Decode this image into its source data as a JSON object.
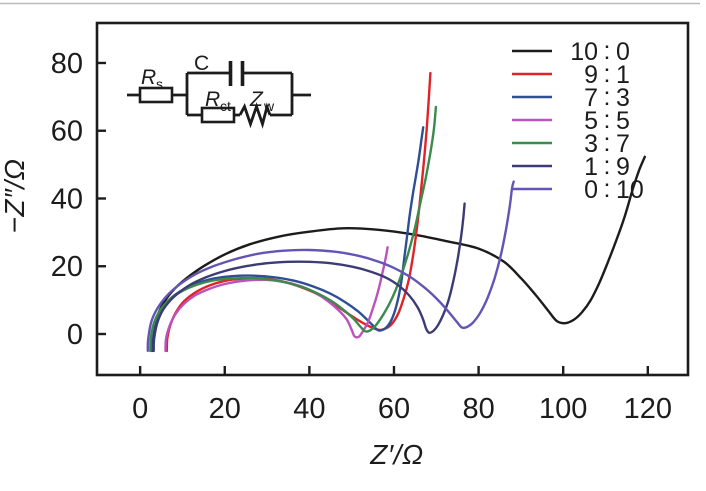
{
  "figure": {
    "background": "#ffffff",
    "frame_color": "#1c1c1c",
    "top_border_color": "#bbbbbb"
  },
  "axes": {
    "x": {
      "title": "Z′/Ω",
      "ticks": [
        0,
        20,
        40,
        60,
        80,
        100,
        120
      ],
      "range": [
        -10.2,
        129.5
      ]
    },
    "y": {
      "title": "−Z″/Ω",
      "ticks": [
        0,
        20,
        40,
        60,
        80
      ],
      "range": [
        -12.1,
        91.8
      ]
    }
  },
  "legend": {
    "position": "top-right",
    "items": [
      {
        "label": "10 : 0",
        "color": "#1c1c1c"
      },
      {
        "label": "9 : 1",
        "color": "#e02328"
      },
      {
        "label": "7 : 3",
        "color": "#2e4f93"
      },
      {
        "label": "5 : 5",
        "color": "#bb53be"
      },
      {
        "label": "3 : 7",
        "color": "#3c8a4d"
      },
      {
        "label": "1 : 9",
        "color": "#3c3c74"
      },
      {
        "label": "0 : 10",
        "color": "#6355b4"
      }
    ]
  },
  "circuit_inset": {
    "rs": {
      "main": "R",
      "sub": "s"
    },
    "c": {
      "main": "C"
    },
    "rct": {
      "main": "R",
      "sub": "ct"
    },
    "zw": {
      "main": "Z",
      "sub": "w"
    }
  },
  "chart_data": {
    "type": "line",
    "description": "Nyquist impedance plot (EIS): semicircle + Warburg tail for each mixing ratio",
    "xlabel": "Z′/Ω",
    "ylabel": "−Z″/Ω",
    "xlim": [
      -10.2,
      129.5
    ],
    "ylim": [
      -12.1,
      91.8
    ],
    "grid": false,
    "series": [
      {
        "name": "10 : 0",
        "color": "#1c1c1c",
        "points": [
          [
            2.8,
            -5
          ],
          [
            2.9,
            -1
          ],
          [
            3.6,
            3.5
          ],
          [
            5,
            8
          ],
          [
            7.5,
            12.5
          ],
          [
            11,
            16.5
          ],
          [
            15,
            20
          ],
          [
            20,
            23.5
          ],
          [
            26,
            26.5
          ],
          [
            33,
            28.8
          ],
          [
            40,
            30.2
          ],
          [
            48,
            31.2
          ],
          [
            56,
            30.8
          ],
          [
            64,
            29.5
          ],
          [
            72,
            27.5
          ],
          [
            80,
            25.2
          ],
          [
            86,
            21.3
          ],
          [
            90,
            16.5
          ],
          [
            93.5,
            11.5
          ],
          [
            96.5,
            6.8
          ],
          [
            98.5,
            3.8
          ],
          [
            100.5,
            3.2
          ],
          [
            102.5,
            4.2
          ],
          [
            104.5,
            6.5
          ],
          [
            106.5,
            10
          ],
          [
            108.5,
            15
          ],
          [
            110.5,
            21
          ],
          [
            112.5,
            27.5
          ],
          [
            114.5,
            34.5
          ],
          [
            116.5,
            43
          ],
          [
            118,
            48.5
          ],
          [
            119.3,
            52.3
          ]
        ]
      },
      {
        "name": "9 : 1",
        "color": "#e02328",
        "points": [
          [
            6.3,
            -5
          ],
          [
            6.4,
            -1.5
          ],
          [
            7.1,
            2.5
          ],
          [
            8.5,
            6.5
          ],
          [
            10.5,
            9.8
          ],
          [
            13.5,
            12.6
          ],
          [
            17,
            14.6
          ],
          [
            21,
            15.9
          ],
          [
            25,
            16.4
          ],
          [
            29,
            16.4
          ],
          [
            33,
            15.7
          ],
          [
            37,
            14.3
          ],
          [
            41,
            12.3
          ],
          [
            44.5,
            9.9
          ],
          [
            47.5,
            7.4
          ],
          [
            50.5,
            4.9
          ],
          [
            53,
            3
          ],
          [
            55,
            1.8
          ],
          [
            56.5,
            1.2
          ],
          [
            58,
            1.6
          ],
          [
            59.5,
            3
          ],
          [
            61,
            6
          ],
          [
            62.3,
            10.5
          ],
          [
            63.5,
            16
          ],
          [
            64.5,
            23
          ],
          [
            65.4,
            31
          ],
          [
            66.2,
            40
          ],
          [
            67,
            50
          ],
          [
            67.7,
            60
          ],
          [
            68.2,
            69
          ],
          [
            68.6,
            77
          ]
        ]
      },
      {
        "name": "7 : 3",
        "color": "#2e4f93",
        "points": [
          [
            2.6,
            -5
          ],
          [
            2.7,
            -1.5
          ],
          [
            3.4,
            3
          ],
          [
            4.8,
            7
          ],
          [
            7,
            10.3
          ],
          [
            10,
            13
          ],
          [
            13.5,
            15
          ],
          [
            17.5,
            16.4
          ],
          [
            22,
            17.1
          ],
          [
            27,
            17.2
          ],
          [
            32,
            16.7
          ],
          [
            36.5,
            15.7
          ],
          [
            41,
            14
          ],
          [
            45,
            11.9
          ],
          [
            48.5,
            9.4
          ],
          [
            51.5,
            6.7
          ],
          [
            53.5,
            4.4
          ],
          [
            55.2,
            2.3
          ],
          [
            56.3,
            1.1
          ],
          [
            57.6,
            1.4
          ],
          [
            58.9,
            3
          ],
          [
            60,
            6
          ],
          [
            61,
            10.5
          ],
          [
            61.8,
            16
          ],
          [
            62.4,
            22
          ],
          [
            63,
            28
          ],
          [
            63.6,
            34
          ],
          [
            64.3,
            40
          ],
          [
            65.1,
            46
          ],
          [
            65.9,
            52
          ],
          [
            66.5,
            57.5
          ],
          [
            66.9,
            61
          ]
        ]
      },
      {
        "name": "5 : 5",
        "color": "#bb53be",
        "points": [
          [
            6,
            -5
          ],
          [
            6.1,
            -1.5
          ],
          [
            6.9,
            2.2
          ],
          [
            8.3,
            5.8
          ],
          [
            10.3,
            8.8
          ],
          [
            13,
            11.4
          ],
          [
            16.5,
            13.4
          ],
          [
            20.5,
            14.9
          ],
          [
            25,
            15.8
          ],
          [
            29.5,
            16
          ],
          [
            34,
            15.4
          ],
          [
            38,
            14.1
          ],
          [
            41.5,
            12.1
          ],
          [
            44.5,
            9.6
          ],
          [
            47,
            6.9
          ],
          [
            48.9,
            4.2
          ],
          [
            50,
            1.2
          ],
          [
            50.7,
            -0.7
          ],
          [
            51.7,
            -0.8
          ],
          [
            52.7,
            0.9
          ],
          [
            53.9,
            3.6
          ],
          [
            55,
            7.5
          ],
          [
            56.1,
            12
          ],
          [
            57,
            16.5
          ],
          [
            57.7,
            20.5
          ],
          [
            58.2,
            23.5
          ],
          [
            58.5,
            25.6
          ]
        ]
      },
      {
        "name": "3 : 7",
        "color": "#3c8a4d",
        "points": [
          [
            2.4,
            -5
          ],
          [
            2.5,
            -1.5
          ],
          [
            3.2,
            3
          ],
          [
            4.6,
            6.8
          ],
          [
            6.8,
            10
          ],
          [
            9.8,
            12.6
          ],
          [
            13.3,
            14.5
          ],
          [
            17.3,
            15.8
          ],
          [
            21.8,
            16.4
          ],
          [
            26.5,
            16.5
          ],
          [
            31,
            16
          ],
          [
            35.5,
            14.9
          ],
          [
            39.5,
            13.3
          ],
          [
            43,
            11.3
          ],
          [
            46,
            9.1
          ],
          [
            48.5,
            6.7
          ],
          [
            50.5,
            4.4
          ],
          [
            52.1,
            2.1
          ],
          [
            53.2,
            0.8
          ],
          [
            54.4,
            1.1
          ],
          [
            55.8,
            2.7
          ],
          [
            57.3,
            5.4
          ],
          [
            58.9,
            8.9
          ],
          [
            60.4,
            13
          ],
          [
            61.9,
            18
          ],
          [
            63.4,
            24
          ],
          [
            64.9,
            31
          ],
          [
            66.2,
            38.5
          ],
          [
            67.5,
            46
          ],
          [
            68.6,
            53.5
          ],
          [
            69.4,
            60
          ],
          [
            69.9,
            67
          ]
        ]
      },
      {
        "name": "1 : 9",
        "color": "#3c3c74",
        "points": [
          [
            3.2,
            -5
          ],
          [
            3.3,
            -1.5
          ],
          [
            4.1,
            3.5
          ],
          [
            5.6,
            7.5
          ],
          [
            8,
            11
          ],
          [
            11.5,
            14.3
          ],
          [
            15.5,
            16.7
          ],
          [
            20,
            18.6
          ],
          [
            25,
            20
          ],
          [
            30,
            20.9
          ],
          [
            35,
            21.3
          ],
          [
            40,
            21.3
          ],
          [
            45,
            20.9
          ],
          [
            50,
            19.9
          ],
          [
            54,
            18.6
          ],
          [
            58,
            16.7
          ],
          [
            61,
            14.4
          ],
          [
            63.5,
            11.5
          ],
          [
            65.5,
            8.1
          ],
          [
            66.8,
            4.6
          ],
          [
            67.6,
            1.6
          ],
          [
            68.3,
            0.4
          ],
          [
            69.3,
            0.9
          ],
          [
            70.4,
            2.6
          ],
          [
            71.6,
            5.6
          ],
          [
            72.9,
            10
          ],
          [
            74.1,
            16
          ],
          [
            75.1,
            22.5
          ],
          [
            75.9,
            29
          ],
          [
            76.4,
            34.5
          ],
          [
            76.7,
            38.5
          ]
        ]
      },
      {
        "name": "0 : 10",
        "color": "#6355b4",
        "points": [
          [
            1.8,
            -5
          ],
          [
            1.9,
            -1.5
          ],
          [
            2.6,
            3.5
          ],
          [
            4.1,
            7.6
          ],
          [
            6.4,
            11.4
          ],
          [
            9.4,
            14.7
          ],
          [
            13,
            17.6
          ],
          [
            17.5,
            20.1
          ],
          [
            22.5,
            22.1
          ],
          [
            28,
            23.7
          ],
          [
            34,
            24.6
          ],
          [
            40,
            24.8
          ],
          [
            46,
            24.3
          ],
          [
            51.5,
            23.1
          ],
          [
            56,
            21.5
          ],
          [
            60,
            19.5
          ],
          [
            64,
            16.7
          ],
          [
            67.5,
            13.4
          ],
          [
            70.5,
            9.9
          ],
          [
            73,
            6.4
          ],
          [
            74.9,
            3.5
          ],
          [
            76.1,
            1.9
          ],
          [
            77.3,
            2.1
          ],
          [
            78.7,
            3.4
          ],
          [
            80.3,
            6.1
          ],
          [
            82.1,
            10.6
          ],
          [
            83.8,
            16.5
          ],
          [
            85.3,
            23.5
          ],
          [
            86.5,
            31
          ],
          [
            87.4,
            38
          ],
          [
            87.9,
            43
          ],
          [
            88.3,
            45
          ]
        ]
      }
    ]
  }
}
